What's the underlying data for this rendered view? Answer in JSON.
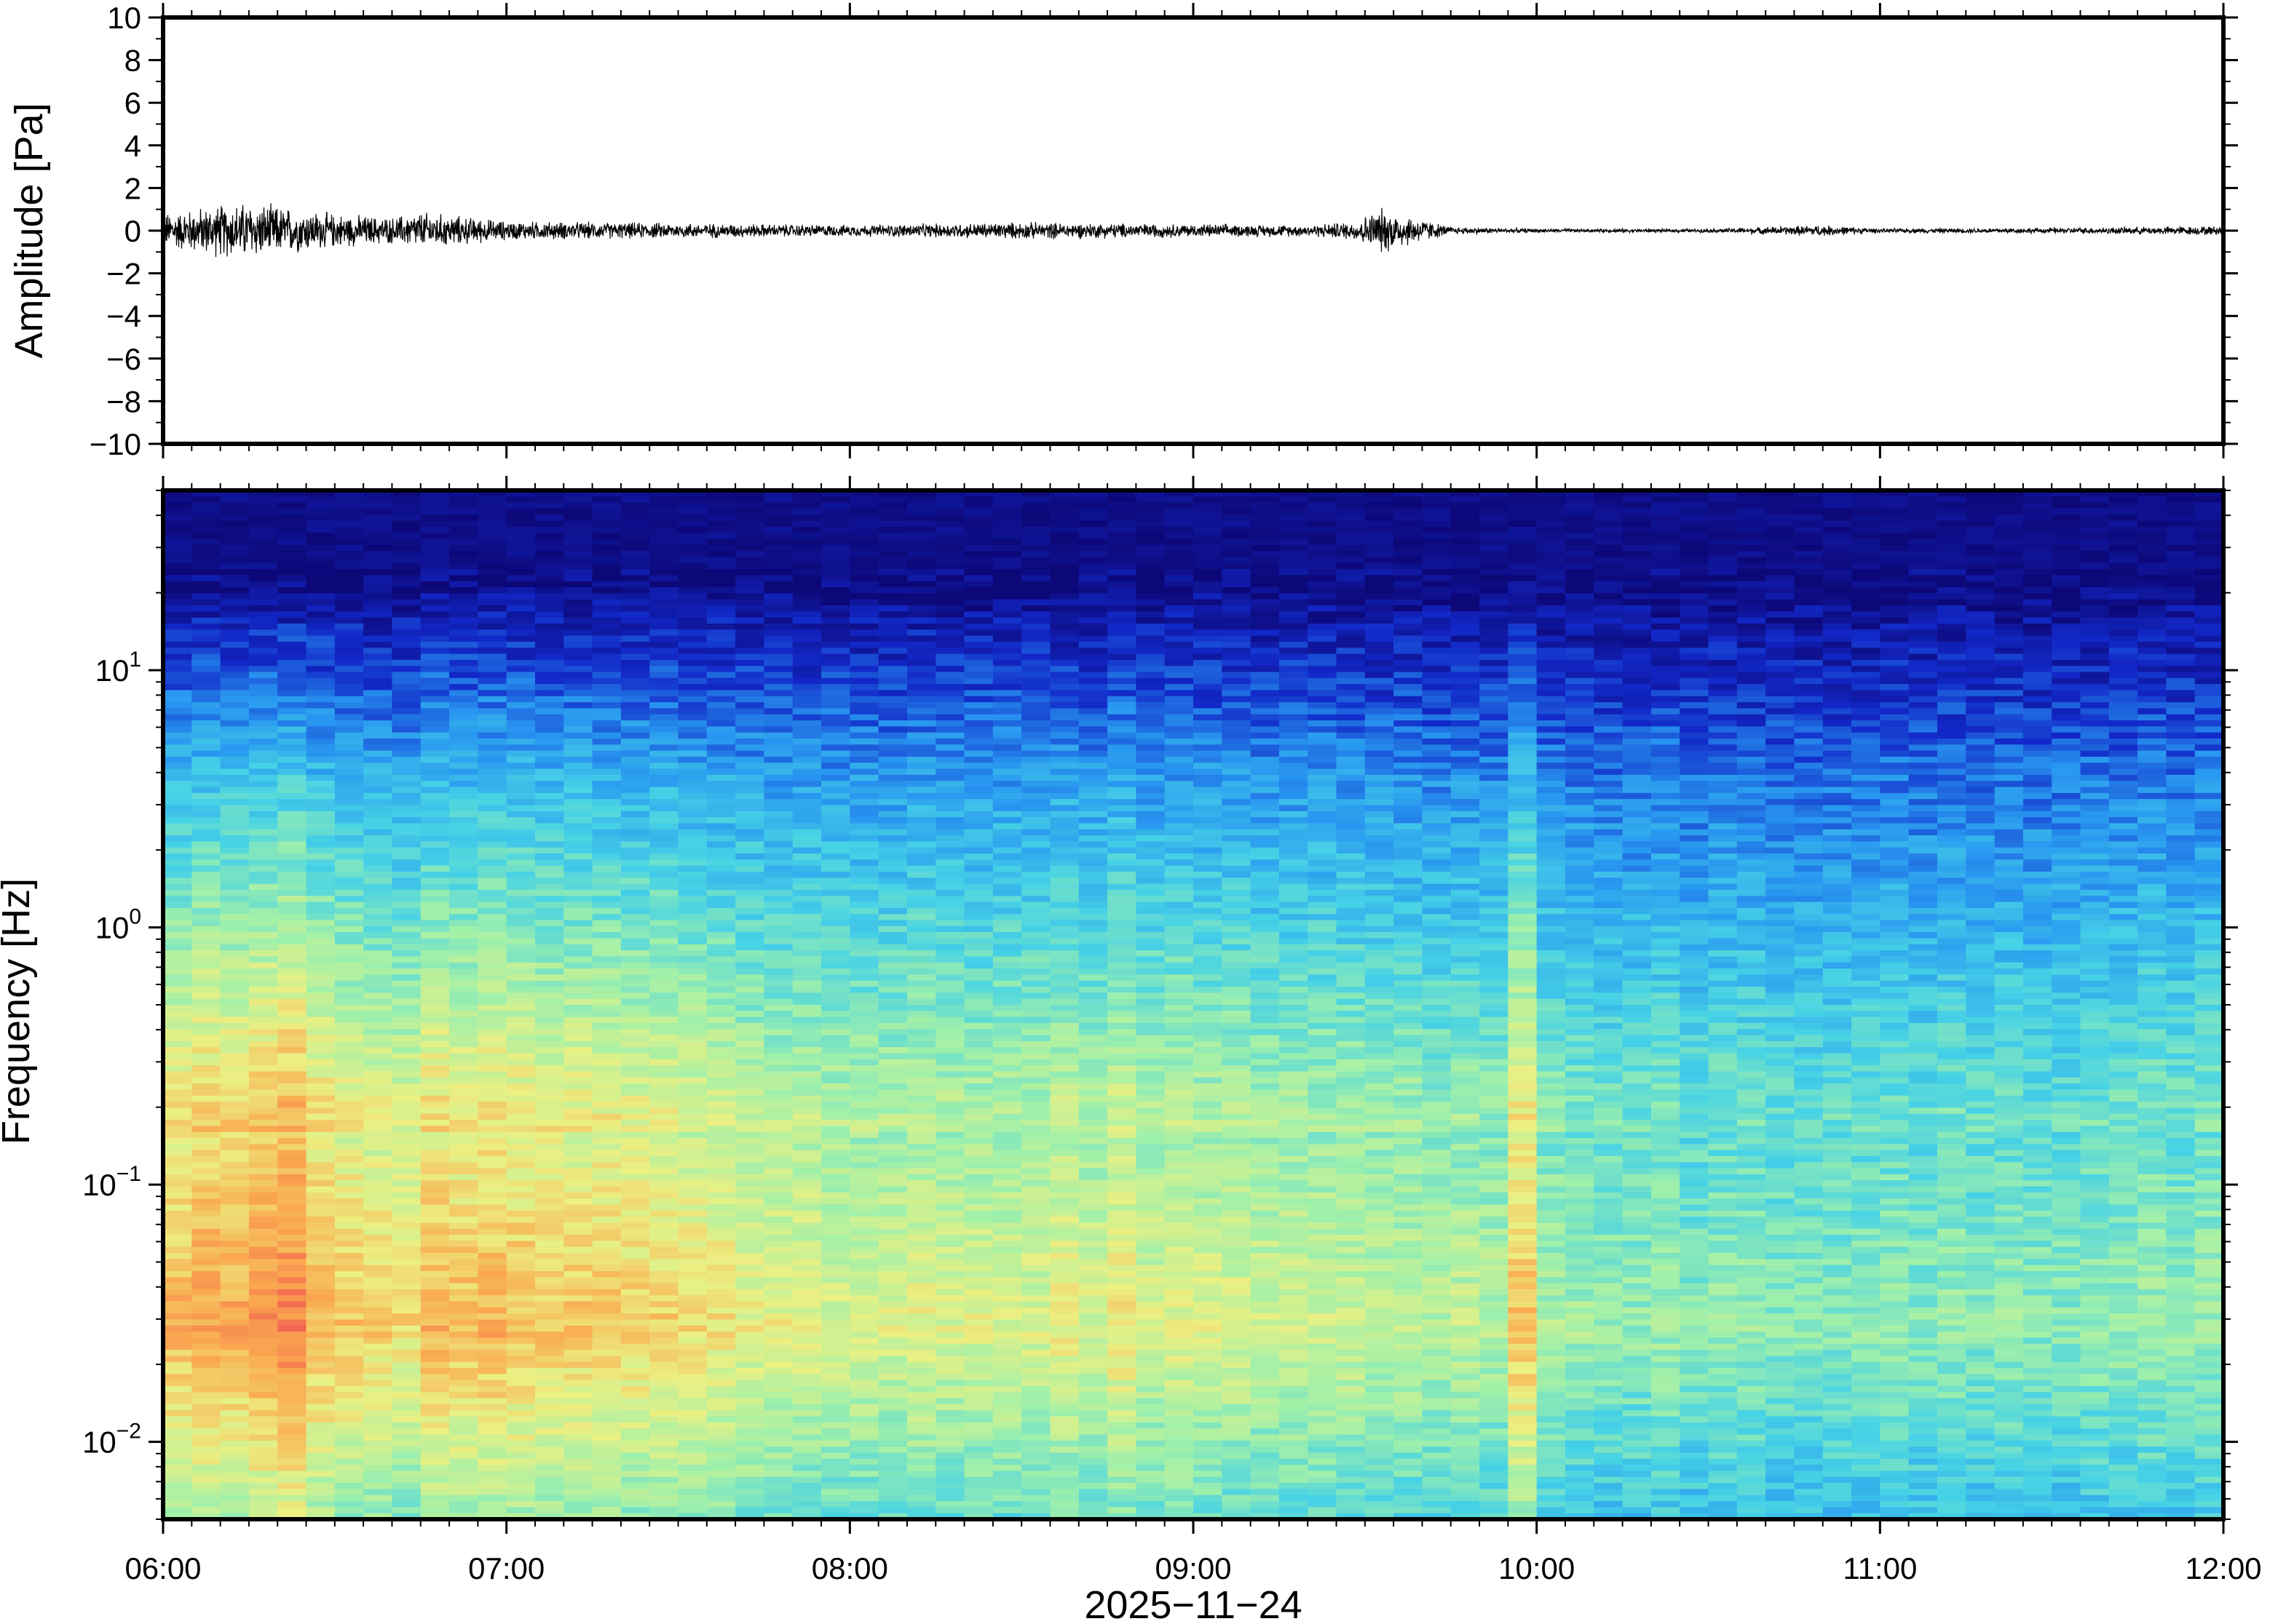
{
  "chart_data": [
    {
      "type": "line",
      "ylabel": "Amplitude [Pa]",
      "ylim": [
        -10,
        10
      ],
      "yticks": [
        10,
        8,
        6,
        4,
        2,
        0,
        -2,
        -4,
        -6,
        -8,
        -10
      ],
      "ytick_labels": [
        "10",
        "8",
        "6",
        "4",
        "2",
        "0",
        "−2",
        "−4",
        "−6",
        "−8",
        "−10"
      ],
      "xlim": [
        "06:00",
        "12:00"
      ],
      "series_color": "#000000",
      "grid": false,
      "envelope": {
        "x": [
          "06:00",
          "06:10",
          "06:15",
          "06:20",
          "06:30",
          "06:40",
          "06:45",
          "07:00",
          "07:30",
          "08:00",
          "08:30",
          "09:00",
          "09:20",
          "09:28",
          "09:33",
          "09:45",
          "10:00",
          "10:30",
          "10:50",
          "11:00",
          "11:30",
          "12:00"
        ],
        "amplitude": [
          0.9,
          1.4,
          1.5,
          1.3,
          0.9,
          0.7,
          1.0,
          0.5,
          0.4,
          0.3,
          0.45,
          0.35,
          0.3,
          0.5,
          1.2,
          0.2,
          0.1,
          0.1,
          0.3,
          0.12,
          0.15,
          0.25
        ]
      }
    },
    {
      "type": "heatmap",
      "xlabel": "2025−11−24",
      "ylabel": "Frequency [Hz]",
      "yscale": "log",
      "ylim": [
        0.005,
        50
      ],
      "yticks": [
        0.01,
        0.1,
        1,
        10
      ],
      "ytick_labels": [
        {
          "base": "10",
          "exp": "−2"
        },
        {
          "base": "10",
          "exp": "−1"
        },
        {
          "base": "10",
          "exp": "0"
        },
        {
          "base": "10",
          "exp": "1"
        }
      ],
      "xlim": [
        "06:00",
        "12:00"
      ],
      "xtick_labels": [
        "06:00",
        "07:00",
        "08:00",
        "09:00",
        "10:00",
        "11:00",
        "12:00"
      ],
      "colormap": "jet",
      "time_cols": 72,
      "column_energy": [
        1.0,
        1.1,
        1.05,
        1.15,
        1.25,
        1.0,
        0.9,
        0.85,
        0.8,
        1.0,
        0.95,
        1.0,
        0.95,
        0.9,
        0.9,
        0.9,
        0.85,
        0.85,
        0.8,
        0.75,
        0.7,
        0.65,
        0.65,
        0.6,
        0.6,
        0.6,
        0.65,
        0.6,
        0.6,
        0.6,
        0.6,
        0.7,
        0.6,
        0.75,
        0.6,
        0.65,
        0.6,
        0.6,
        0.55,
        0.55,
        0.55,
        0.55,
        0.5,
        0.5,
        0.45,
        0.5,
        0.45,
        0.95,
        0.4,
        0.35,
        0.3,
        0.3,
        0.35,
        0.25,
        0.3,
        0.3,
        0.25,
        0.25,
        0.25,
        0.25,
        0.3,
        0.25,
        0.3,
        0.25,
        0.3,
        0.25,
        0.25,
        0.3,
        0.3,
        0.35,
        0.3,
        0.35
      ]
    }
  ]
}
